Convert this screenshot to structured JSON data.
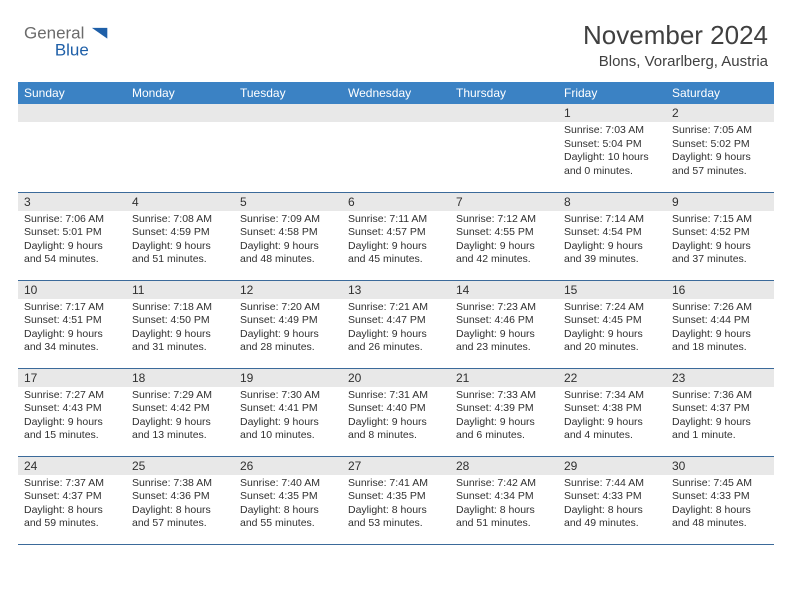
{
  "brand": {
    "name1": "General",
    "name2": "Blue"
  },
  "header": {
    "month_title": "November 2024",
    "location": "Blons, Vorarlberg, Austria"
  },
  "colors": {
    "header_bg": "#3b82c4",
    "header_fg": "#ffffff",
    "spacer_bg": "#e8e8e8",
    "cell_border": "#3b6a9a",
    "text": "#303030",
    "title": "#404040",
    "logo_gray": "#6b6b6b",
    "logo_blue": "#1e5fa8"
  },
  "weekdays": [
    "Sunday",
    "Monday",
    "Tuesday",
    "Wednesday",
    "Thursday",
    "Friday",
    "Saturday"
  ],
  "weeks": [
    [
      null,
      null,
      null,
      null,
      null,
      {
        "day": "1",
        "sunrise": "Sunrise: 7:03 AM",
        "sunset": "Sunset: 5:04 PM",
        "daylight": "Daylight: 10 hours and 0 minutes."
      },
      {
        "day": "2",
        "sunrise": "Sunrise: 7:05 AM",
        "sunset": "Sunset: 5:02 PM",
        "daylight": "Daylight: 9 hours and 57 minutes."
      }
    ],
    [
      {
        "day": "3",
        "sunrise": "Sunrise: 7:06 AM",
        "sunset": "Sunset: 5:01 PM",
        "daylight": "Daylight: 9 hours and 54 minutes."
      },
      {
        "day": "4",
        "sunrise": "Sunrise: 7:08 AM",
        "sunset": "Sunset: 4:59 PM",
        "daylight": "Daylight: 9 hours and 51 minutes."
      },
      {
        "day": "5",
        "sunrise": "Sunrise: 7:09 AM",
        "sunset": "Sunset: 4:58 PM",
        "daylight": "Daylight: 9 hours and 48 minutes."
      },
      {
        "day": "6",
        "sunrise": "Sunrise: 7:11 AM",
        "sunset": "Sunset: 4:57 PM",
        "daylight": "Daylight: 9 hours and 45 minutes."
      },
      {
        "day": "7",
        "sunrise": "Sunrise: 7:12 AM",
        "sunset": "Sunset: 4:55 PM",
        "daylight": "Daylight: 9 hours and 42 minutes."
      },
      {
        "day": "8",
        "sunrise": "Sunrise: 7:14 AM",
        "sunset": "Sunset: 4:54 PM",
        "daylight": "Daylight: 9 hours and 39 minutes."
      },
      {
        "day": "9",
        "sunrise": "Sunrise: 7:15 AM",
        "sunset": "Sunset: 4:52 PM",
        "daylight": "Daylight: 9 hours and 37 minutes."
      }
    ],
    [
      {
        "day": "10",
        "sunrise": "Sunrise: 7:17 AM",
        "sunset": "Sunset: 4:51 PM",
        "daylight": "Daylight: 9 hours and 34 minutes."
      },
      {
        "day": "11",
        "sunrise": "Sunrise: 7:18 AM",
        "sunset": "Sunset: 4:50 PM",
        "daylight": "Daylight: 9 hours and 31 minutes."
      },
      {
        "day": "12",
        "sunrise": "Sunrise: 7:20 AM",
        "sunset": "Sunset: 4:49 PM",
        "daylight": "Daylight: 9 hours and 28 minutes."
      },
      {
        "day": "13",
        "sunrise": "Sunrise: 7:21 AM",
        "sunset": "Sunset: 4:47 PM",
        "daylight": "Daylight: 9 hours and 26 minutes."
      },
      {
        "day": "14",
        "sunrise": "Sunrise: 7:23 AM",
        "sunset": "Sunset: 4:46 PM",
        "daylight": "Daylight: 9 hours and 23 minutes."
      },
      {
        "day": "15",
        "sunrise": "Sunrise: 7:24 AM",
        "sunset": "Sunset: 4:45 PM",
        "daylight": "Daylight: 9 hours and 20 minutes."
      },
      {
        "day": "16",
        "sunrise": "Sunrise: 7:26 AM",
        "sunset": "Sunset: 4:44 PM",
        "daylight": "Daylight: 9 hours and 18 minutes."
      }
    ],
    [
      {
        "day": "17",
        "sunrise": "Sunrise: 7:27 AM",
        "sunset": "Sunset: 4:43 PM",
        "daylight": "Daylight: 9 hours and 15 minutes."
      },
      {
        "day": "18",
        "sunrise": "Sunrise: 7:29 AM",
        "sunset": "Sunset: 4:42 PM",
        "daylight": "Daylight: 9 hours and 13 minutes."
      },
      {
        "day": "19",
        "sunrise": "Sunrise: 7:30 AM",
        "sunset": "Sunset: 4:41 PM",
        "daylight": "Daylight: 9 hours and 10 minutes."
      },
      {
        "day": "20",
        "sunrise": "Sunrise: 7:31 AM",
        "sunset": "Sunset: 4:40 PM",
        "daylight": "Daylight: 9 hours and 8 minutes."
      },
      {
        "day": "21",
        "sunrise": "Sunrise: 7:33 AM",
        "sunset": "Sunset: 4:39 PM",
        "daylight": "Daylight: 9 hours and 6 minutes."
      },
      {
        "day": "22",
        "sunrise": "Sunrise: 7:34 AM",
        "sunset": "Sunset: 4:38 PM",
        "daylight": "Daylight: 9 hours and 4 minutes."
      },
      {
        "day": "23",
        "sunrise": "Sunrise: 7:36 AM",
        "sunset": "Sunset: 4:37 PM",
        "daylight": "Daylight: 9 hours and 1 minute."
      }
    ],
    [
      {
        "day": "24",
        "sunrise": "Sunrise: 7:37 AM",
        "sunset": "Sunset: 4:37 PM",
        "daylight": "Daylight: 8 hours and 59 minutes."
      },
      {
        "day": "25",
        "sunrise": "Sunrise: 7:38 AM",
        "sunset": "Sunset: 4:36 PM",
        "daylight": "Daylight: 8 hours and 57 minutes."
      },
      {
        "day": "26",
        "sunrise": "Sunrise: 7:40 AM",
        "sunset": "Sunset: 4:35 PM",
        "daylight": "Daylight: 8 hours and 55 minutes."
      },
      {
        "day": "27",
        "sunrise": "Sunrise: 7:41 AM",
        "sunset": "Sunset: 4:35 PM",
        "daylight": "Daylight: 8 hours and 53 minutes."
      },
      {
        "day": "28",
        "sunrise": "Sunrise: 7:42 AM",
        "sunset": "Sunset: 4:34 PM",
        "daylight": "Daylight: 8 hours and 51 minutes."
      },
      {
        "day": "29",
        "sunrise": "Sunrise: 7:44 AM",
        "sunset": "Sunset: 4:33 PM",
        "daylight": "Daylight: 8 hours and 49 minutes."
      },
      {
        "day": "30",
        "sunrise": "Sunrise: 7:45 AM",
        "sunset": "Sunset: 4:33 PM",
        "daylight": "Daylight: 8 hours and 48 minutes."
      }
    ]
  ]
}
